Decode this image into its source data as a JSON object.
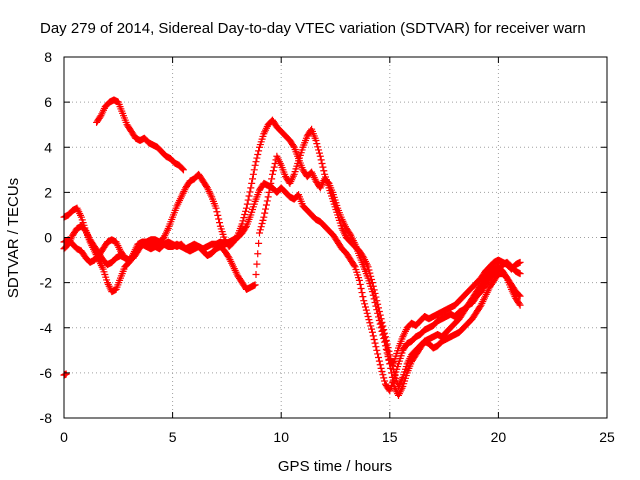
{
  "chart_data": {
    "type": "scatter",
    "title": "Day 279 of 2014, Sidereal Day-to-day VTEC variation (SDTVAR) for receiver warn",
    "xlabel": "GPS time / hours",
    "ylabel": "SDTVAR / TECUs",
    "xlim": [
      0,
      25
    ],
    "ylim": [
      -8,
      8
    ],
    "xticks": [
      "0",
      "5",
      "10",
      "15",
      "20",
      "25"
    ],
    "yticks": [
      "8",
      "6",
      "4",
      "2",
      "0",
      "-2",
      "-4",
      "-6",
      "-8"
    ],
    "grid": true,
    "marker": "+",
    "color": "#ff0000",
    "series": [
      {
        "x": [
          0.0,
          0.1
        ],
        "y": [
          -6.1,
          -6.05
        ]
      },
      {
        "x": [
          0.0,
          0.2,
          0.4,
          0.6,
          0.8,
          1.0,
          1.2,
          1.4,
          1.6,
          1.8,
          2.0,
          2.2,
          2.4,
          2.6,
          2.8,
          3.0,
          3.2,
          3.4,
          3.6,
          3.8,
          4.0,
          4.2,
          4.4,
          4.6,
          4.8,
          5.0,
          5.2,
          5.4,
          5.6,
          5.8,
          6.0,
          6.2,
          6.4,
          6.6,
          6.8,
          7.0,
          7.2,
          7.4,
          7.6,
          7.8,
          8.0,
          8.2,
          8.4,
          8.6,
          8.8,
          9.0,
          9.2,
          9.4,
          9.6,
          9.8,
          10.0,
          10.2,
          10.4,
          10.6,
          10.8,
          11.0,
          11.2,
          11.4,
          11.6,
          11.8,
          12.0,
          12.2,
          12.4,
          12.6,
          12.8,
          13.0,
          13.2,
          13.4,
          13.6,
          13.8,
          14.0,
          14.2,
          14.4,
          14.6,
          14.8,
          15.0,
          15.2,
          15.4,
          15.6,
          15.8,
          16.0,
          16.2,
          16.4,
          16.6,
          16.8,
          17.0,
          17.2,
          17.4,
          17.6,
          17.8,
          18.0,
          18.2,
          18.4,
          18.6,
          18.8,
          19.0,
          19.2,
          19.4,
          19.6,
          19.8,
          20.0,
          20.2,
          20.4,
          20.6,
          20.8,
          21.0
        ],
        "y": [
          0.9,
          1.0,
          1.2,
          1.3,
          0.9,
          0.3,
          -0.2,
          -0.6,
          -1.0,
          -1.4,
          -2.0,
          -2.4,
          -2.3,
          -1.8,
          -1.3,
          -1.1,
          -0.7,
          -0.3,
          -0.2,
          -0.2,
          -0.3,
          -0.3,
          -0.4,
          -0.3,
          -0.4,
          -0.4,
          -0.3,
          -0.4,
          -0.5,
          -0.4,
          -0.3,
          -0.4,
          -0.5,
          -0.4,
          -0.3,
          -0.3,
          -0.2,
          -0.3,
          -0.2,
          -0.1,
          0.0,
          0.2,
          0.5,
          1.0,
          1.6,
          2.1,
          2.4,
          2.3,
          2.2,
          2.0,
          2.2,
          2.0,
          1.8,
          1.7,
          1.9,
          1.4,
          1.2,
          1.0,
          0.8,
          0.7,
          0.5,
          0.3,
          0.1,
          -0.2,
          -0.5,
          -0.7,
          -1.0,
          -1.3,
          -1.9,
          -2.8,
          -3.5,
          -4.2,
          -5.0,
          -5.8,
          -6.5,
          -6.8,
          -6.2,
          -5.6,
          -5.0,
          -4.7,
          -4.6,
          -4.4,
          -4.3,
          -4.1,
          -4.0,
          -3.9,
          -3.7,
          -3.6,
          -3.5,
          -3.4,
          -3.5,
          -3.3,
          -3.2,
          -3.0,
          -2.9,
          -2.6,
          -2.4,
          -2.1,
          -1.8,
          -1.6,
          -1.4,
          -1.2,
          -1.1,
          -1.3,
          -1.5,
          -1.6
        ]
      },
      {
        "x": [
          0.0,
          0.2,
          0.4,
          0.6,
          0.8,
          1.0,
          1.2,
          1.4,
          1.6,
          1.8,
          2.0,
          2.2,
          2.4,
          2.6,
          2.8,
          3.0,
          3.2,
          3.4,
          3.6,
          3.8,
          4.0,
          4.2,
          4.4,
          4.6,
          4.8,
          5.0,
          5.2,
          5.4,
          5.6,
          5.8,
          6.0,
          6.2,
          6.4,
          6.6,
          6.8,
          7.0,
          7.2,
          7.4,
          7.6,
          7.8,
          8.0,
          8.2,
          8.4,
          8.6,
          8.8,
          9.0,
          9.2,
          9.4,
          9.6,
          9.8,
          10.0,
          10.2,
          10.4,
          10.6,
          10.8,
          11.0,
          11.2,
          11.4,
          11.6,
          11.8,
          12.0,
          12.2,
          12.4,
          12.6,
          12.8,
          13.0,
          13.2,
          13.4,
          13.6,
          13.8,
          14.0,
          14.2,
          14.4,
          14.6,
          14.8,
          15.0,
          15.2,
          15.4,
          15.6,
          15.8,
          16.0,
          16.2,
          16.4,
          16.6,
          16.8,
          17.0,
          17.2,
          17.4,
          17.6,
          17.8,
          18.0,
          18.2,
          18.4,
          18.6,
          18.8,
          19.0,
          19.2,
          19.4,
          19.6,
          19.8,
          20.0,
          20.2,
          20.4,
          20.6,
          20.8,
          21.0
        ],
        "y": [
          -0.2,
          -0.1,
          -0.3,
          -0.5,
          -0.6,
          -0.9,
          -1.1,
          -1.0,
          -0.8,
          -0.5,
          -0.2,
          -0.1,
          -0.2,
          -0.6,
          -0.9,
          -1.0,
          -0.9,
          -0.6,
          -0.3,
          -0.2,
          -0.1,
          -0.1,
          -0.2,
          0.0,
          0.4,
          0.9,
          1.4,
          1.8,
          2.2,
          2.5,
          2.6,
          2.8,
          2.5,
          2.2,
          1.8,
          1.3,
          0.5,
          -0.1,
          -0.4,
          -0.2,
          0.1,
          0.6,
          1.3,
          2.2,
          3.2,
          4.0,
          4.6,
          5.0,
          5.2,
          4.9,
          4.7,
          4.5,
          4.3,
          4.0,
          3.5,
          3.0,
          2.7,
          2.9,
          2.5,
          2.2,
          2.6,
          2.4,
          1.9,
          1.3,
          0.8,
          0.4,
          0.1,
          -0.3,
          -0.8,
          -1.3,
          -1.8,
          -2.4,
          -3.2,
          -4.0,
          -4.8,
          -5.6,
          -5.5,
          -4.9,
          -4.4,
          -4.0,
          -3.8,
          -3.9,
          -3.7,
          -3.5,
          -3.6,
          -3.5,
          -3.4,
          -3.3,
          -3.2,
          -3.1,
          -3.0,
          -2.8,
          -2.6,
          -2.4,
          -2.2,
          -2.0,
          -1.8,
          -1.5,
          -1.3,
          -1.1,
          -1.0,
          -1.1,
          -1.2,
          -1.4,
          -1.2,
          -1.1
        ]
      },
      {
        "x": [
          0.0,
          0.2,
          0.4,
          0.6,
          0.8,
          1.0,
          1.2,
          1.4,
          1.6,
          1.8,
          2.0,
          2.2,
          2.4,
          2.6,
          2.8,
          3.0,
          3.2,
          3.4,
          3.6,
          3.8,
          4.0,
          4.2,
          4.4,
          4.6,
          4.8,
          5.0,
          5.2,
          5.4,
          5.6,
          5.8,
          6.0,
          6.2,
          6.4,
          6.6,
          6.8,
          7.0,
          7.2,
          7.4,
          7.6,
          7.8,
          8.0,
          8.2,
          8.4,
          8.6,
          8.8,
          9.0,
          9.2,
          9.4,
          9.6,
          9.8,
          10.0,
          10.2,
          10.4,
          10.6,
          10.8,
          11.0,
          11.2,
          11.4,
          11.6,
          11.8,
          12.0,
          12.2,
          12.4,
          12.6,
          12.8,
          13.0,
          13.2,
          13.4,
          13.6,
          13.8,
          14.0,
          14.2,
          14.4,
          14.6,
          14.8,
          15.0,
          15.2,
          15.4,
          15.6,
          15.8,
          16.0,
          16.2,
          16.4,
          16.6,
          16.8,
          17.0,
          17.2,
          17.4,
          17.6,
          17.8,
          18.0,
          18.2,
          18.4,
          18.6,
          18.8,
          19.0,
          19.2,
          19.4,
          19.6,
          19.8,
          20.0,
          20.2,
          20.4,
          20.6,
          20.8,
          21.0
        ],
        "y": [
          -0.5,
          -0.3,
          0.1,
          0.4,
          0.5,
          0.3,
          -0.1,
          -0.4,
          -0.7,
          -1.0,
          -1.2,
          -1.1,
          -0.9,
          -0.8,
          -0.9,
          -1.0,
          -0.8,
          -0.5,
          -0.3,
          -0.4,
          -0.5,
          -0.4,
          -0.5,
          -0.3,
          -0.2,
          -0.3,
          -0.4,
          -0.3,
          -0.5,
          -0.6,
          -0.5,
          -0.4,
          -0.6,
          -0.8,
          -0.7,
          -0.5,
          -0.4,
          -0.6,
          -0.9,
          -1.3,
          -1.7,
          -2.0,
          -2.3,
          -2.2,
          -2.1,
          0.2,
          0.9,
          1.8,
          2.8,
          3.6,
          3.2,
          2.7,
          2.4,
          2.8,
          3.4,
          4.0,
          4.5,
          4.8,
          4.3,
          3.6,
          2.8,
          2.2,
          1.6,
          1.0,
          0.4,
          0.0,
          -0.2,
          -0.4,
          -0.6,
          -0.9,
          -1.3,
          -2.0,
          -2.8,
          -3.6,
          -4.4,
          -5.2,
          -6.0,
          -6.6,
          -6.2,
          -5.6,
          -5.2,
          -5.0,
          -4.8,
          -4.6,
          -4.5,
          -4.4,
          -4.3,
          -4.4,
          -4.2,
          -4.0,
          -3.8,
          -3.6,
          -3.3,
          -3.0,
          -2.7,
          -2.4,
          -2.1,
          -1.8,
          -1.6,
          -1.4,
          -1.3,
          -1.5,
          -1.8,
          -2.1,
          -2.4,
          -2.6
        ]
      },
      {
        "x": [
          1.5,
          1.7,
          1.9,
          2.1,
          2.3,
          2.5,
          2.7,
          2.9,
          3.1,
          3.3,
          3.5,
          3.7,
          3.9,
          4.1,
          4.3,
          4.5,
          4.7,
          4.9,
          5.1,
          5.3,
          5.5
        ],
        "y": [
          5.1,
          5.4,
          5.8,
          6.0,
          6.1,
          6.0,
          5.5,
          5.0,
          4.7,
          4.4,
          4.3,
          4.4,
          4.2,
          4.1,
          4.0,
          3.8,
          3.6,
          3.5,
          3.3,
          3.2,
          3.0
        ]
      },
      {
        "x": [
          14.6,
          14.8,
          15.0,
          15.2,
          15.4,
          15.6,
          15.8,
          16.0,
          16.2,
          16.4,
          16.6,
          16.8,
          17.0,
          17.2,
          17.4,
          17.6,
          17.8,
          18.0,
          18.2,
          18.4,
          18.6,
          18.8,
          19.0,
          19.2,
          19.4,
          19.6,
          19.8,
          20.0,
          20.2,
          20.4,
          20.6,
          20.8,
          21.0
        ],
        "y": [
          -3.8,
          -4.6,
          -5.6,
          -6.6,
          -7.0,
          -6.6,
          -6.0,
          -5.5,
          -5.2,
          -4.9,
          -4.6,
          -4.7,
          -4.9,
          -4.8,
          -4.6,
          -4.5,
          -4.4,
          -4.3,
          -4.2,
          -4.0,
          -3.8,
          -3.6,
          -3.3,
          -3.0,
          -2.6,
          -2.2,
          -1.9,
          -1.6,
          -1.6,
          -1.8,
          -2.3,
          -2.7,
          -3.0
        ]
      }
    ]
  }
}
